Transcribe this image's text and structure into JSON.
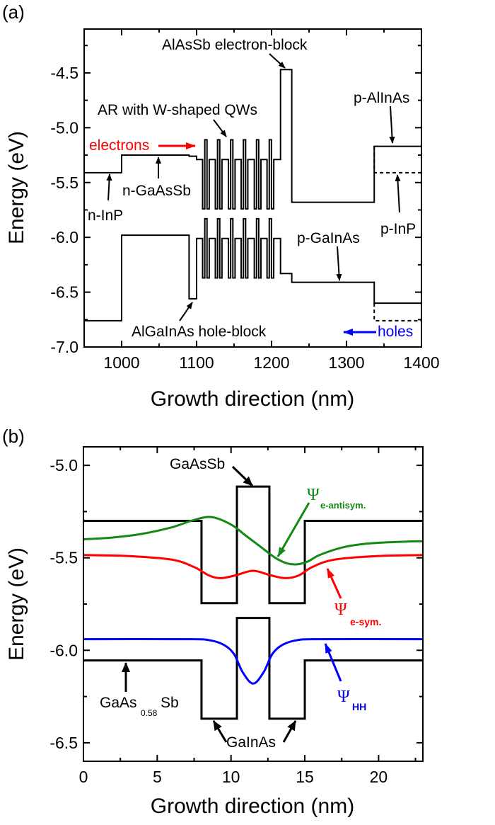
{
  "colors": {
    "electrons": "#ff0000",
    "holes": "#0000ff",
    "psi_antisym": "#138a13",
    "psi_sym": "#ff0000",
    "psi_hh": "#0000ff",
    "band": "#000000"
  },
  "chart_data": [
    {
      "type": "line",
      "panel_label": "(a)",
      "xlabel": "Growth direction (nm)",
      "ylabel": "Energy (eV)",
      "xlim": [
        950,
        1400
      ],
      "ylim": [
        -7.0,
        -4.1
      ],
      "xticks": [
        1000,
        1100,
        1200,
        1300,
        1400
      ],
      "xtick_labels": [
        "1000",
        "1100",
        "1200",
        "1300",
        "1400"
      ],
      "yticks": [
        -4.5,
        -5.0,
        -5.5,
        -6.0,
        -6.5,
        -7.0
      ],
      "ytick_labels": [
        "-4.5",
        "-5.0",
        "-5.5",
        "-6.0",
        "-6.5",
        "-7.0"
      ],
      "grid": false,
      "conduction_band": {
        "before_qws": [
          [
            950,
            1000,
            -5.41
          ],
          [
            1000,
            1090,
            -5.25
          ],
          [
            1090,
            1100,
            -5.26
          ],
          [
            1100,
            1108,
            -5.29
          ]
        ],
        "after_qws": [
          [
            1203,
            1212,
            -5.29
          ],
          [
            1212,
            1227,
            -4.47
          ],
          [
            1227,
            1337,
            -5.68
          ],
          [
            1337,
            1400,
            -5.17
          ]
        ],
        "dashed": [
          [
            1337,
            1400,
            -5.41
          ]
        ]
      },
      "valence_band": {
        "before_qws": [
          [
            950,
            1000,
            -6.76
          ],
          [
            1000,
            1090,
            -5.98
          ],
          [
            1090,
            1100,
            -6.56
          ],
          [
            1100,
            1108,
            -6.01
          ]
        ],
        "after_qws": [
          [
            1203,
            1212,
            -6.01
          ],
          [
            1212,
            1227,
            -6.33
          ],
          [
            1227,
            1337,
            -6.41
          ],
          [
            1337,
            1400,
            -6.6
          ]
        ],
        "dashed": [
          [
            1337,
            1400,
            -6.76
          ]
        ]
      },
      "w_qws": {
        "starts": [
          1108,
          1125,
          1142.5,
          1159.5,
          1177,
          1194
        ],
        "layer_width": 2.95,
        "cb": {
          "base": -5.29,
          "well": -5.74,
          "barrier": -5.11
        },
        "vb": {
          "base": -6.01,
          "well": -6.37,
          "barrier": -5.83
        }
      },
      "annotations": {
        "electron_block": "AlAsSb electron-block",
        "ar_qws": "AR with W-shaped QWs",
        "electrons": "electrons",
        "n_gaassb": "n-GaAsSb",
        "n_inp": "n-InP",
        "p_alinas": "p-AlInAs",
        "p_inp": "p-InP",
        "p_gainas": "p-GaInAs",
        "hole_block": "AlGaInAs hole-block",
        "holes": "holes"
      }
    },
    {
      "type": "line",
      "panel_label": "(b)",
      "xlabel": "Growth direction (nm)",
      "ylabel": "Energy (eV)",
      "xlim": [
        0,
        23
      ],
      "ylim": [
        -6.6,
        -4.9
      ],
      "xticks": [
        0,
        5,
        10,
        15,
        20
      ],
      "xtick_labels": [
        "0",
        "5",
        "10",
        "15",
        "20"
      ],
      "yticks": [
        -5.0,
        -5.5,
        -6.0,
        -6.5
      ],
      "ytick_labels": [
        "-5.0",
        "-5.5",
        "-6.0",
        "-6.5"
      ],
      "grid": false,
      "conduction_band": [
        [
          0,
          8,
          -5.3
        ],
        [
          8,
          10.4,
          -5.745
        ],
        [
          10.4,
          12.6,
          -5.115
        ],
        [
          12.6,
          15,
          -5.745
        ],
        [
          15,
          23,
          -5.3
        ]
      ],
      "valence_band": [
        [
          0,
          8,
          -6.055
        ],
        [
          8,
          10.4,
          -6.37
        ],
        [
          10.4,
          12.6,
          -5.825
        ],
        [
          12.6,
          15,
          -6.37
        ],
        [
          15,
          23,
          -6.055
        ]
      ],
      "series": [
        {
          "name": "Ψ e-antisym.",
          "color_key": "psi_antisym",
          "points": [
            [
              0,
              -5.4
            ],
            [
              2,
              -5.39
            ],
            [
              4,
              -5.37
            ],
            [
              6,
              -5.335
            ],
            [
              7.5,
              -5.295
            ],
            [
              8.7,
              -5.28
            ],
            [
              10,
              -5.32
            ],
            [
              11,
              -5.38
            ],
            [
              12,
              -5.44
            ],
            [
              13,
              -5.5
            ],
            [
              13.8,
              -5.53
            ],
            [
              14.5,
              -5.535
            ],
            [
              15.2,
              -5.52
            ],
            [
              16,
              -5.485
            ],
            [
              17.5,
              -5.445
            ],
            [
              19,
              -5.425
            ],
            [
              21,
              -5.415
            ],
            [
              23,
              -5.41
            ]
          ]
        },
        {
          "name": "Ψ e-sym.",
          "color_key": "psi_sym",
          "points": [
            [
              0,
              -5.485
            ],
            [
              3,
              -5.49
            ],
            [
              6,
              -5.51
            ],
            [
              7.5,
              -5.55
            ],
            [
              8.5,
              -5.595
            ],
            [
              9.3,
              -5.61
            ],
            [
              10.3,
              -5.595
            ],
            [
              11.5,
              -5.57
            ],
            [
              12.7,
              -5.595
            ],
            [
              13.7,
              -5.61
            ],
            [
              14.6,
              -5.595
            ],
            [
              15.5,
              -5.55
            ],
            [
              17,
              -5.51
            ],
            [
              20,
              -5.49
            ],
            [
              23,
              -5.485
            ]
          ]
        },
        {
          "name": "Ψ HH",
          "color_key": "psi_hh",
          "points": [
            [
              0,
              -5.94
            ],
            [
              7,
              -5.94
            ],
            [
              8.5,
              -5.945
            ],
            [
              9.5,
              -5.97
            ],
            [
              10.2,
              -6.02
            ],
            [
              10.8,
              -6.12
            ],
            [
              11.5,
              -6.18
            ],
            [
              12.2,
              -6.12
            ],
            [
              12.8,
              -6.02
            ],
            [
              13.5,
              -5.97
            ],
            [
              14.5,
              -5.945
            ],
            [
              16,
              -5.94
            ],
            [
              23,
              -5.94
            ]
          ]
        }
      ],
      "annotations": {
        "gaassb": "GaAsSb",
        "psi": "Ψ",
        "antisym_sub": "e-antisym.",
        "sym_sub": "e-sym.",
        "hh_sub": "HH",
        "gaas_main": "GaAs",
        "gaas_sub": "0.58",
        "gaas_sb": "Sb",
        "gainas": "GaInAs"
      }
    }
  ]
}
